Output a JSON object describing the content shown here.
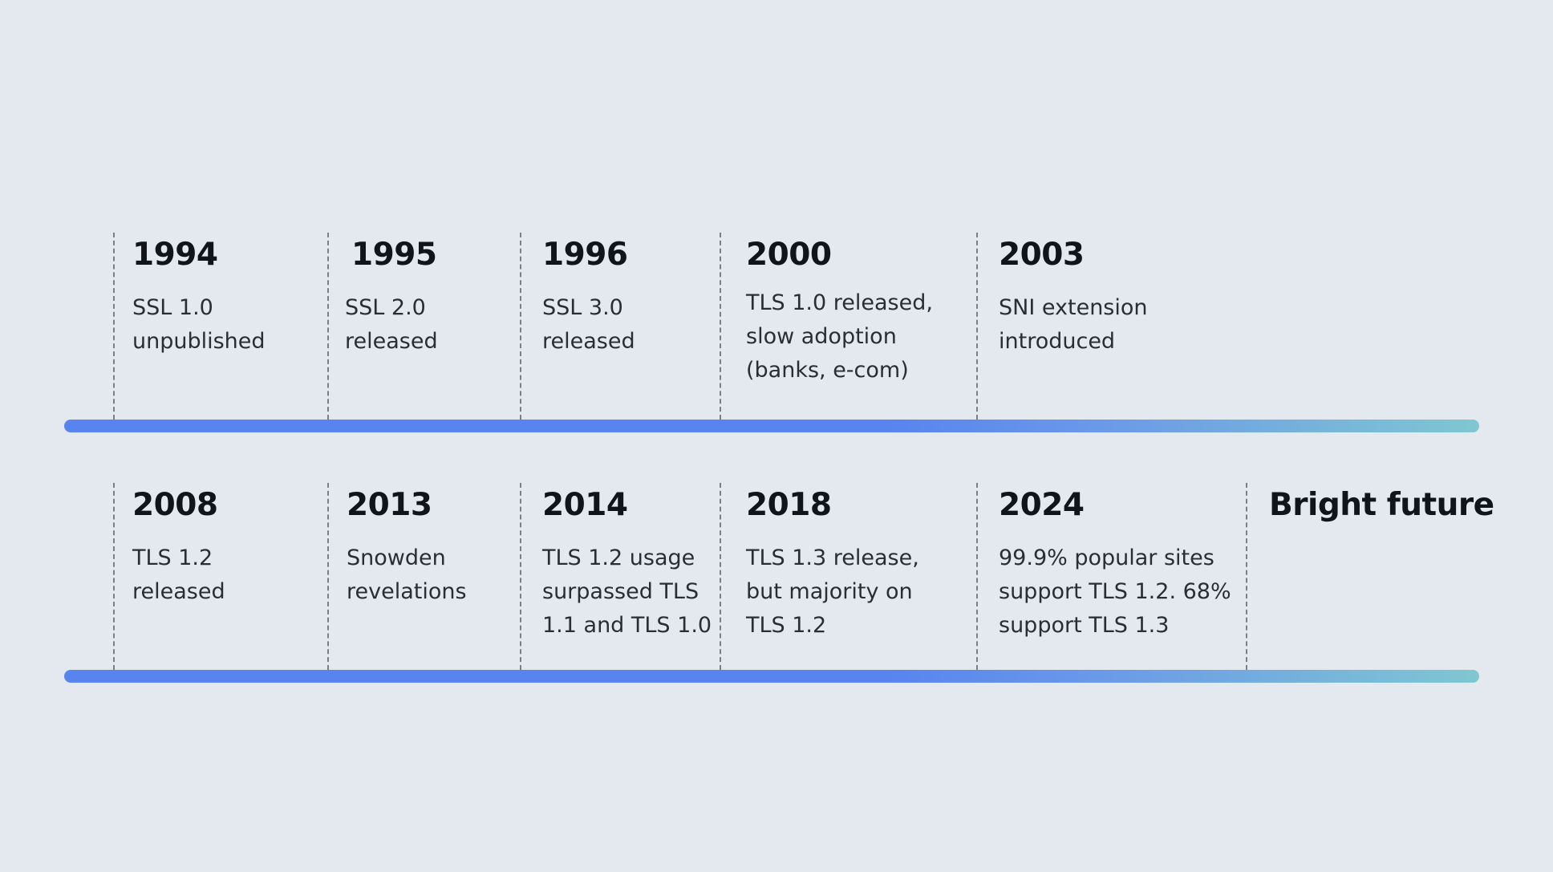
{
  "timeline": {
    "rows": [
      [
        {
          "year": "1994",
          "lines": [
            "SSL 1.0",
            "unpublished"
          ]
        },
        {
          "year": "1995",
          "lines": [
            "SSL 2.0",
            "released"
          ]
        },
        {
          "year": "1996",
          "lines": [
            "SSL 3.0",
            "released"
          ]
        },
        {
          "year": "2000",
          "lines": [
            "TLS 1.0 released,",
            "slow adoption",
            "(banks, e-com)"
          ]
        },
        {
          "year": "2003",
          "lines": [
            "SNI extension",
            "introduced"
          ]
        }
      ],
      [
        {
          "year": "2008",
          "lines": [
            "TLS 1.2",
            "released"
          ]
        },
        {
          "year": "2013",
          "lines": [
            "Snowden",
            "revelations"
          ]
        },
        {
          "year": "2014",
          "lines": [
            "TLS 1.2 usage",
            "surpassed TLS",
            "1.1 and TLS 1.0"
          ]
        },
        {
          "year": "2018",
          "lines": [
            "TLS 1.3 release,",
            "but majority on",
            "TLS 1.2"
          ]
        },
        {
          "year": "2024",
          "lines": [
            "99.9% popular sites",
            "support TLS 1.2. 68%",
            "support TLS 1.3"
          ]
        },
        {
          "year": "Bright future",
          "lines": []
        }
      ]
    ]
  },
  "colors": {
    "background": "#e4e8ef",
    "bar_start": "#5784ee",
    "bar_end": "#7fc7d1",
    "divider": "#7c7f85"
  }
}
